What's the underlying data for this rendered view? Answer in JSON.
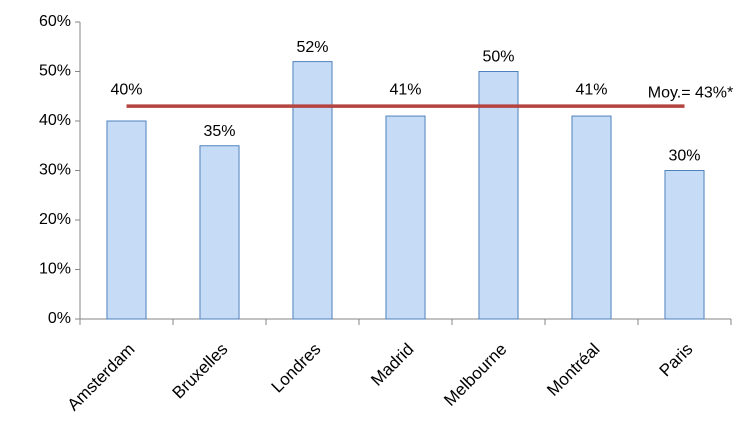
{
  "chart_data": {
    "type": "bar",
    "categories": [
      "Amsterdam",
      "Bruxelles",
      "Londres",
      "Madrid",
      "Melbourne",
      "Montréal",
      "Paris"
    ],
    "values": [
      40,
      35,
      52,
      41,
      50,
      41,
      30
    ],
    "value_labels": [
      "40%",
      "35%",
      "52%",
      "41%",
      "50%",
      "41%",
      "30%"
    ],
    "color": "#c6dcf6",
    "edge_color": "#4f81bd",
    "ylim": [
      0,
      60
    ],
    "yticks": [
      {
        "value": 0,
        "label": "0%"
      },
      {
        "value": 10,
        "label": "10%"
      },
      {
        "value": 20,
        "label": "20%"
      },
      {
        "value": 30,
        "label": "30%"
      },
      {
        "value": 40,
        "label": "40%"
      },
      {
        "value": 50,
        "label": "50%"
      },
      {
        "value": 60,
        "label": "60%"
      }
    ],
    "grid": false,
    "average_line": {
      "value": 43,
      "label": "Moy.= 43%*",
      "color": "#b5433f"
    }
  }
}
